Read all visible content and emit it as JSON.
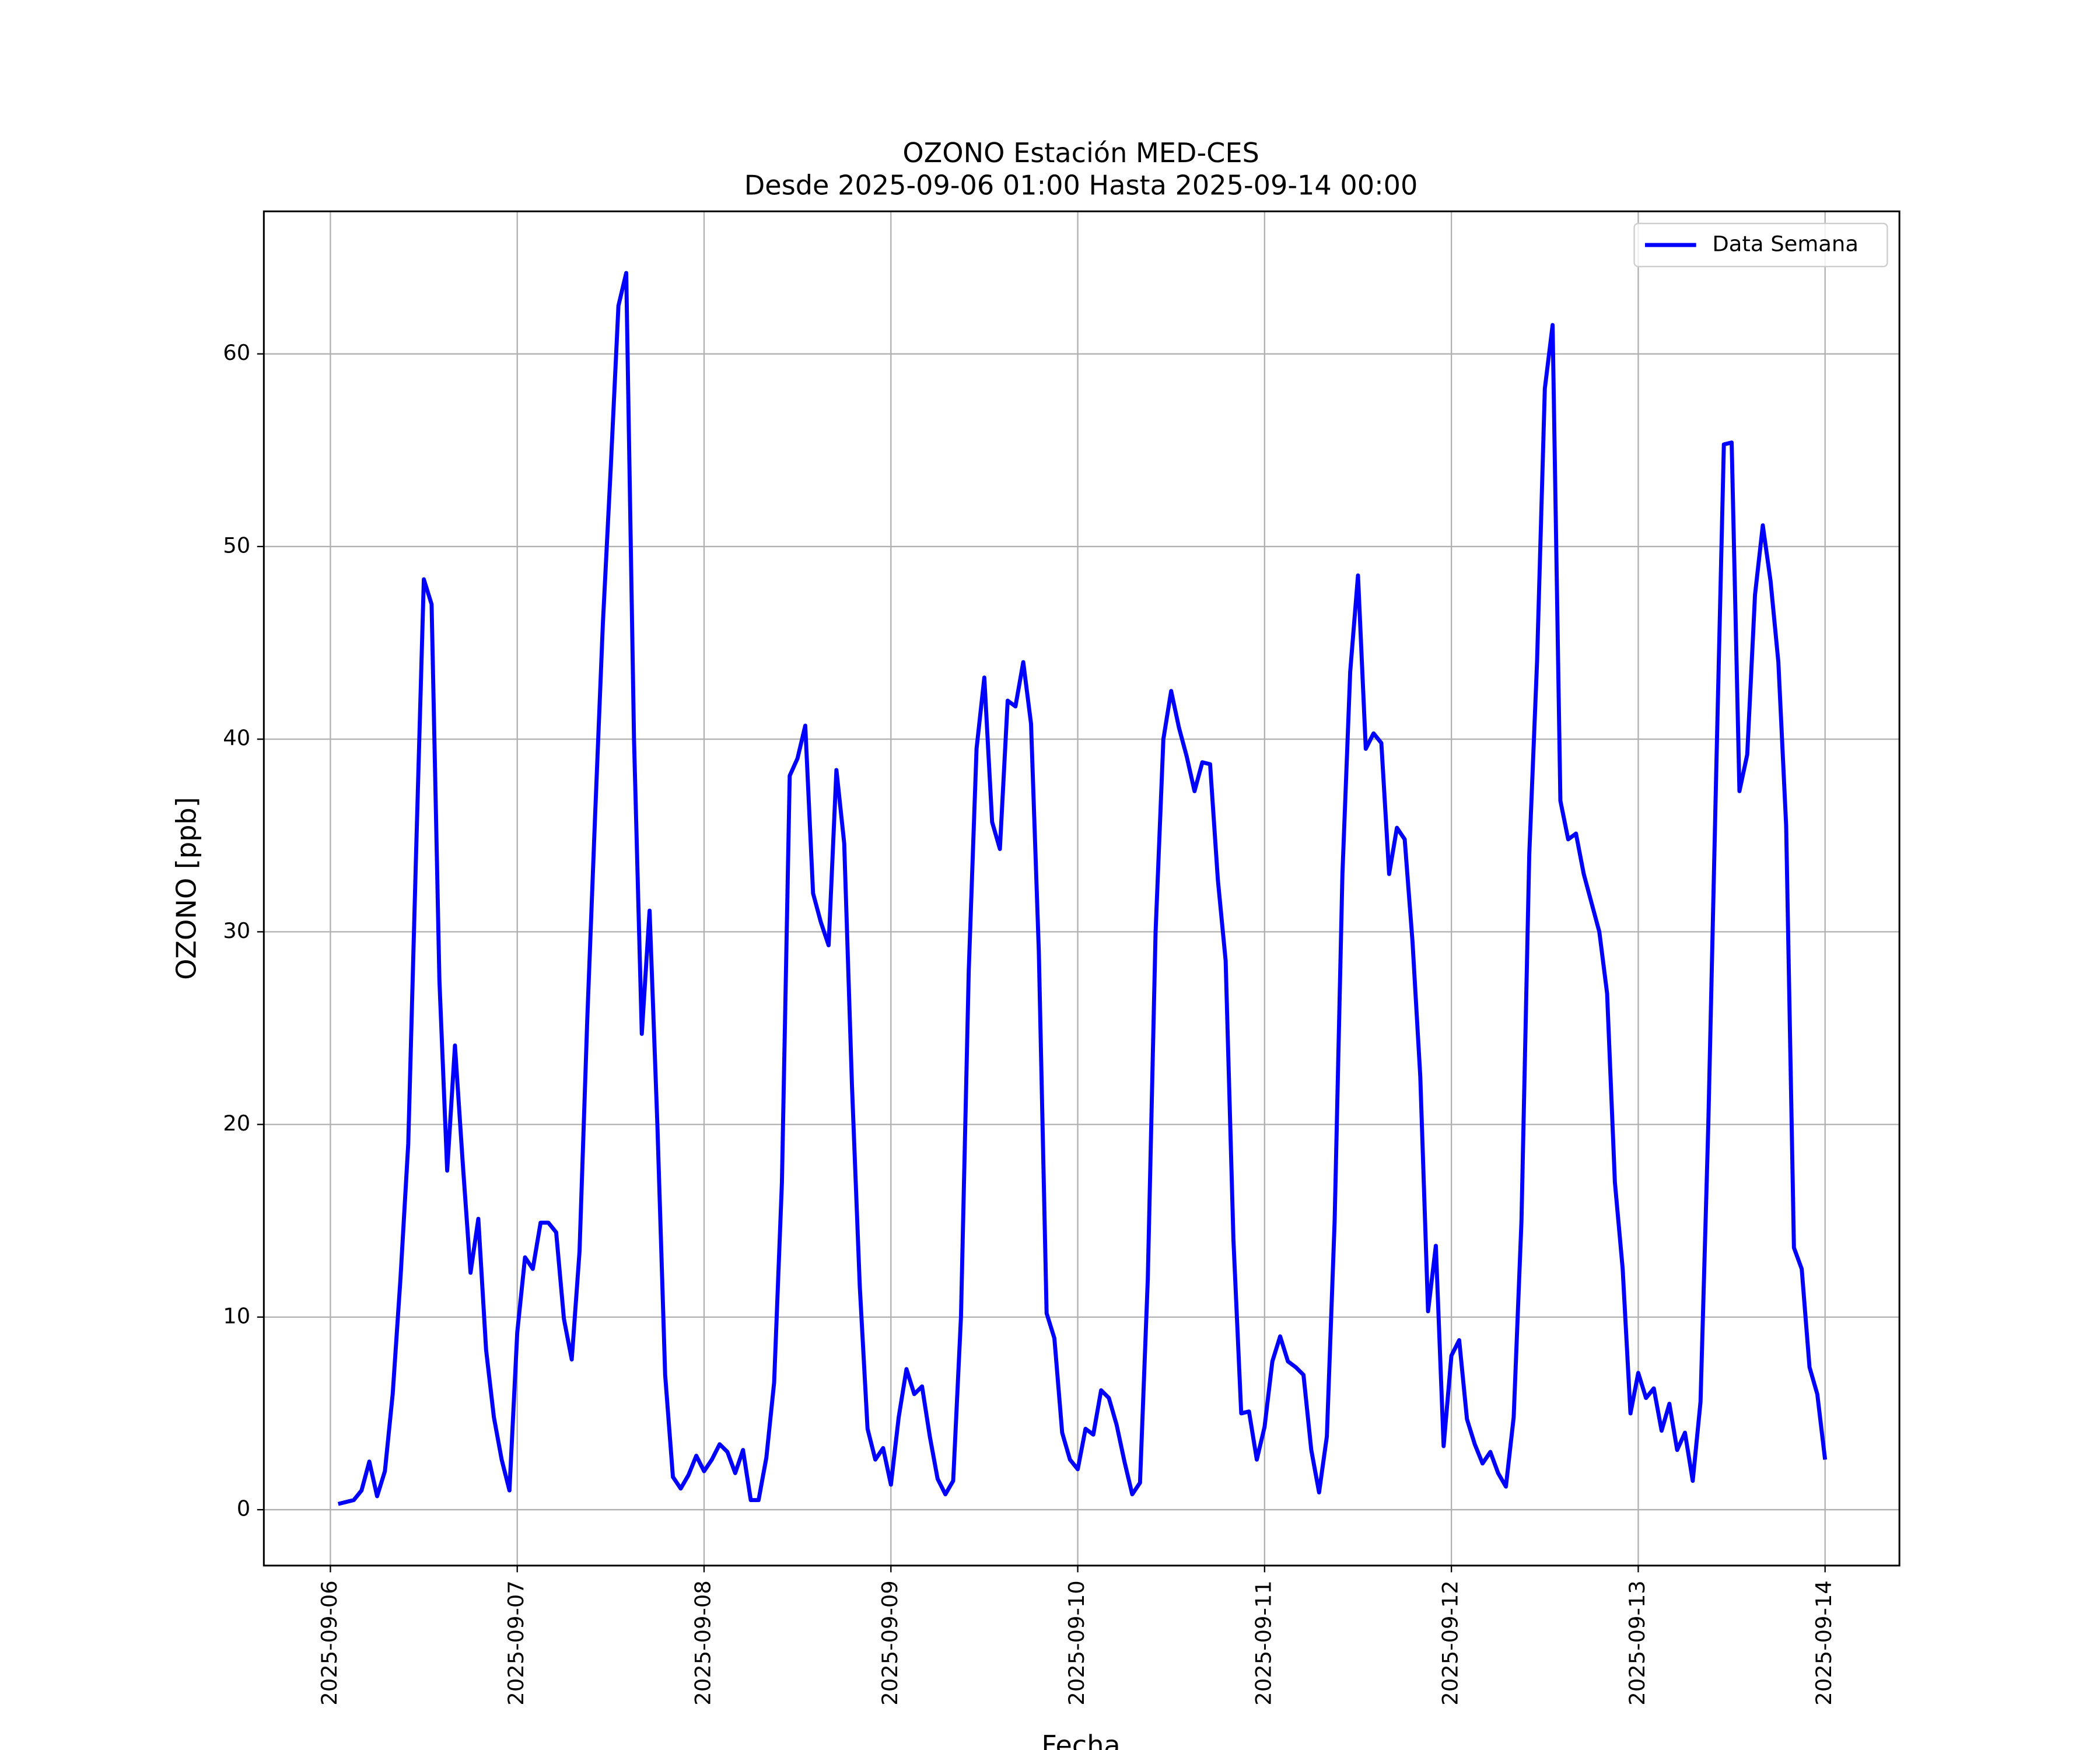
{
  "chart_data": {
    "type": "line",
    "title": "OZONO Estación MED-CES",
    "subtitle": "Desde 2025-09-06 01:00 Hasta 2025-09-14 00:00",
    "x_label": "Fecha",
    "y_label": "OZONO [ppb]",
    "x": [
      "2025-09-06 01:00",
      "2025-09-06 02:00",
      "2025-09-06 03:00",
      "2025-09-06 04:00",
      "2025-09-06 05:00",
      "2025-09-06 06:00",
      "2025-09-06 07:00",
      "2025-09-06 08:00",
      "2025-09-06 09:00",
      "2025-09-06 10:00",
      "2025-09-06 11:00",
      "2025-09-06 12:00",
      "2025-09-06 13:00",
      "2025-09-06 14:00",
      "2025-09-06 15:00",
      "2025-09-06 16:00",
      "2025-09-06 17:00",
      "2025-09-06 18:00",
      "2025-09-06 19:00",
      "2025-09-06 20:00",
      "2025-09-06 21:00",
      "2025-09-06 22:00",
      "2025-09-06 23:00",
      "2025-09-07 00:00",
      "2025-09-07 01:00",
      "2025-09-07 02:00",
      "2025-09-07 03:00",
      "2025-09-07 04:00",
      "2025-09-07 05:00",
      "2025-09-07 06:00",
      "2025-09-07 07:00",
      "2025-09-07 08:00",
      "2025-09-07 09:00",
      "2025-09-07 10:00",
      "2025-09-07 11:00",
      "2025-09-07 12:00",
      "2025-09-07 13:00",
      "2025-09-07 14:00",
      "2025-09-07 15:00",
      "2025-09-07 16:00",
      "2025-09-07 17:00",
      "2025-09-07 18:00",
      "2025-09-07 19:00",
      "2025-09-07 20:00",
      "2025-09-07 21:00",
      "2025-09-07 22:00",
      "2025-09-07 23:00",
      "2025-09-08 00:00",
      "2025-09-08 01:00",
      "2025-09-08 02:00",
      "2025-09-08 03:00",
      "2025-09-08 04:00",
      "2025-09-08 05:00",
      "2025-09-08 06:00",
      "2025-09-08 07:00",
      "2025-09-08 08:00",
      "2025-09-08 09:00",
      "2025-09-08 10:00",
      "2025-09-08 11:00",
      "2025-09-08 12:00",
      "2025-09-08 13:00",
      "2025-09-08 14:00",
      "2025-09-08 15:00",
      "2025-09-08 16:00",
      "2025-09-08 17:00",
      "2025-09-08 18:00",
      "2025-09-08 19:00",
      "2025-09-08 20:00",
      "2025-09-08 21:00",
      "2025-09-08 22:00",
      "2025-09-08 23:00",
      "2025-09-09 00:00",
      "2025-09-09 01:00",
      "2025-09-09 02:00",
      "2025-09-09 03:00",
      "2025-09-09 04:00",
      "2025-09-09 05:00",
      "2025-09-09 06:00",
      "2025-09-09 07:00",
      "2025-09-09 08:00",
      "2025-09-09 09:00",
      "2025-09-09 10:00",
      "2025-09-09 11:00",
      "2025-09-09 12:00",
      "2025-09-09 13:00",
      "2025-09-09 14:00",
      "2025-09-09 15:00",
      "2025-09-09 16:00",
      "2025-09-09 17:00",
      "2025-09-09 18:00",
      "2025-09-09 19:00",
      "2025-09-09 20:00",
      "2025-09-09 21:00",
      "2025-09-09 22:00",
      "2025-09-09 23:00",
      "2025-09-10 00:00",
      "2025-09-10 01:00",
      "2025-09-10 02:00",
      "2025-09-10 03:00",
      "2025-09-10 04:00",
      "2025-09-10 05:00",
      "2025-09-10 06:00",
      "2025-09-10 07:00",
      "2025-09-10 08:00",
      "2025-09-10 09:00",
      "2025-09-10 10:00",
      "2025-09-10 11:00",
      "2025-09-10 12:00",
      "2025-09-10 13:00",
      "2025-09-10 14:00",
      "2025-09-10 15:00",
      "2025-09-10 16:00",
      "2025-09-10 17:00",
      "2025-09-10 18:00",
      "2025-09-10 19:00",
      "2025-09-10 20:00",
      "2025-09-10 21:00",
      "2025-09-10 22:00",
      "2025-09-10 23:00",
      "2025-09-11 00:00",
      "2025-09-11 01:00",
      "2025-09-11 02:00",
      "2025-09-11 03:00",
      "2025-09-11 04:00",
      "2025-09-11 05:00",
      "2025-09-11 06:00",
      "2025-09-11 07:00",
      "2025-09-11 08:00",
      "2025-09-11 09:00",
      "2025-09-11 10:00",
      "2025-09-11 11:00",
      "2025-09-11 12:00",
      "2025-09-11 13:00",
      "2025-09-11 14:00",
      "2025-09-11 15:00",
      "2025-09-11 16:00",
      "2025-09-11 17:00",
      "2025-09-11 18:00",
      "2025-09-11 19:00",
      "2025-09-11 20:00",
      "2025-09-11 21:00",
      "2025-09-11 22:00",
      "2025-09-11 23:00",
      "2025-09-12 00:00",
      "2025-09-12 01:00",
      "2025-09-12 02:00",
      "2025-09-12 03:00",
      "2025-09-12 04:00",
      "2025-09-12 05:00",
      "2025-09-12 06:00",
      "2025-09-12 07:00",
      "2025-09-12 08:00",
      "2025-09-12 09:00",
      "2025-09-12 10:00",
      "2025-09-12 11:00",
      "2025-09-12 12:00",
      "2025-09-12 13:00",
      "2025-09-12 14:00",
      "2025-09-12 15:00",
      "2025-09-12 16:00",
      "2025-09-12 17:00",
      "2025-09-12 18:00",
      "2025-09-12 19:00",
      "2025-09-12 20:00",
      "2025-09-12 21:00",
      "2025-09-12 22:00",
      "2025-09-12 23:00",
      "2025-09-13 00:00",
      "2025-09-13 01:00",
      "2025-09-13 02:00",
      "2025-09-13 03:00",
      "2025-09-13 04:00",
      "2025-09-13 05:00",
      "2025-09-13 06:00",
      "2025-09-13 07:00",
      "2025-09-13 08:00",
      "2025-09-13 09:00",
      "2025-09-13 10:00",
      "2025-09-13 11:00",
      "2025-09-13 12:00",
      "2025-09-13 13:00",
      "2025-09-13 14:00",
      "2025-09-13 15:00",
      "2025-09-13 16:00",
      "2025-09-13 17:00",
      "2025-09-13 18:00",
      "2025-09-13 19:00",
      "2025-09-13 20:00",
      "2025-09-13 21:00",
      "2025-09-13 22:00",
      "2025-09-13 23:00",
      "2025-09-14 00:00"
    ],
    "series": [
      {
        "name": "Data Semana",
        "color": "#0000ff",
        "values": [
          0.3,
          0.4,
          0.5,
          1.0,
          2.5,
          0.7,
          2.0,
          6,
          12,
          19,
          34,
          48.3,
          47,
          27.5,
          17.6,
          24.1,
          18,
          12.3,
          15.1,
          8.3,
          4.8,
          2.6,
          1.0,
          9.2,
          13.1,
          12.5,
          14.9,
          14.9,
          14.4,
          9.9,
          7.8,
          13.4,
          25.5,
          36,
          46,
          54,
          62.5,
          64.2,
          40,
          24.7,
          31.1,
          20,
          7,
          1.7,
          1.1,
          1.8,
          2.8,
          2.0,
          2.6,
          3.4,
          3.0,
          1.9,
          3.1,
          0.5,
          0.5,
          2.7,
          6.6,
          17,
          38.1,
          39,
          40.7,
          32,
          30.5,
          29.3,
          38.4,
          34.6,
          22,
          11.6,
          4.2,
          2.6,
          3.2,
          1.3,
          4.8,
          7.3,
          6.0,
          6.4,
          3.8,
          1.6,
          0.8,
          1.5,
          10,
          28,
          39.5,
          43.2,
          35.7,
          34.3,
          42,
          41.7,
          44,
          40.8,
          29,
          10.2,
          8.9,
          4,
          2.6,
          2.1,
          4.2,
          3.9,
          6.2,
          5.8,
          4.4,
          2.5,
          0.8,
          1.4,
          12,
          30,
          40,
          42.5,
          40.6,
          39.1,
          37.3,
          38.8,
          38.7,
          32.7,
          28.5,
          14,
          5.0,
          5.1,
          2.6,
          4.3,
          7.7,
          9.0,
          7.7,
          7.4,
          7.0,
          3.1,
          0.9,
          3.8,
          15,
          33,
          43.5,
          48.5,
          39.5,
          40.3,
          39.8,
          33,
          35.4,
          34.8,
          29.5,
          22.5,
          10.3,
          13.7,
          3.3,
          8.0,
          8.8,
          4.7,
          3.4,
          2.4,
          3.0,
          1.9,
          1.2,
          4.8,
          15,
          34,
          44,
          58.2,
          61.5,
          36.8,
          34.8,
          35.1,
          33,
          31.5,
          30,
          26.8,
          17,
          12.5,
          5.0,
          7.1,
          5.8,
          6.3,
          4.1,
          5.5,
          3.1,
          4.0,
          1.5,
          5.6,
          20,
          38,
          55.3,
          55.4,
          37.3,
          39.2,
          47.5,
          51.1,
          48.2,
          44,
          35.5,
          13.6,
          12.5,
          7.4,
          6.0,
          2.6
        ]
      }
    ],
    "xlim": [
      "2025-09-05 15:27",
      "2025-09-14 09:33"
    ],
    "xticks": [
      "2025-09-06",
      "2025-09-07",
      "2025-09-08",
      "2025-09-09",
      "2025-09-10",
      "2025-09-11",
      "2025-09-12",
      "2025-09-13",
      "2025-09-14"
    ],
    "ylim": [
      -2.9,
      67.4
    ],
    "yticks": [
      0,
      10,
      20,
      30,
      40,
      50,
      60
    ],
    "grid": true,
    "legend": "upper right"
  }
}
